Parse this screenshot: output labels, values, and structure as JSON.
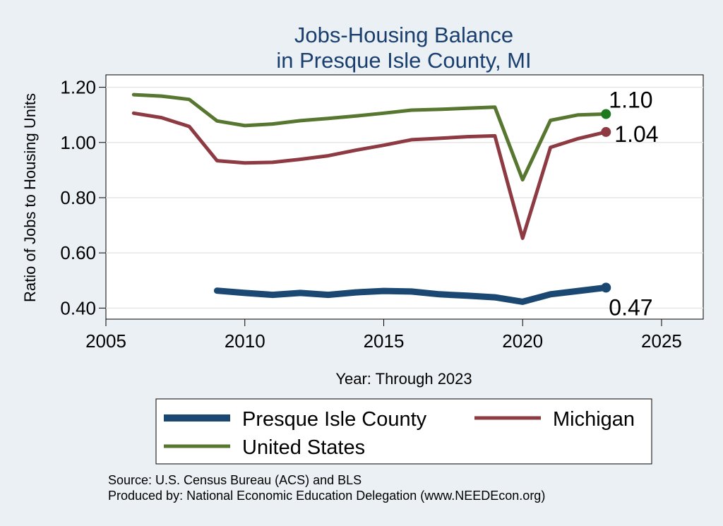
{
  "chart_data": {
    "type": "line",
    "title": [
      "Jobs-Housing Balance",
      "in Presque Isle County, MI"
    ],
    "xlabel": "Year: Through 2023",
    "ylabel": "Ratio of Jobs to Housing Units",
    "xlim": [
      2005,
      2026.5
    ],
    "ylim": [
      0.36,
      1.245
    ],
    "xticks": [
      2005,
      2010,
      2015,
      2020,
      2025
    ],
    "yticks": [
      0.4,
      0.6,
      0.8,
      1.0,
      1.2
    ],
    "ytick_labels": [
      "0.40",
      "0.60",
      "0.80",
      "1.00",
      "1.20"
    ],
    "grid": "horizontal",
    "legend_placement": "bottom",
    "series": [
      {
        "key": "county",
        "name": "Presque Isle County",
        "color": "#1b4872",
        "x": [
          2009,
          2010,
          2011,
          2012,
          2013,
          2014,
          2015,
          2016,
          2017,
          2018,
          2019,
          2020,
          2021,
          2022,
          2023
        ],
        "values": [
          0.463,
          0.455,
          0.448,
          0.455,
          0.448,
          0.457,
          0.462,
          0.46,
          0.45,
          0.445,
          0.439,
          0.423,
          0.45,
          0.462,
          0.474
        ],
        "end_label": "0.47"
      },
      {
        "key": "michigan",
        "name": "Michigan",
        "color": "#8e3a42",
        "x": [
          2006,
          2007,
          2008,
          2009,
          2010,
          2011,
          2012,
          2013,
          2014,
          2015,
          2016,
          2017,
          2018,
          2019,
          2020,
          2021,
          2022,
          2023
        ],
        "values": [
          1.106,
          1.09,
          1.058,
          0.934,
          0.926,
          0.928,
          0.939,
          0.952,
          0.972,
          0.99,
          1.01,
          1.015,
          1.021,
          1.024,
          0.653,
          0.982,
          1.014,
          1.038
        ],
        "end_label": "1.04"
      },
      {
        "key": "us",
        "name": "United States",
        "color": "#57762f",
        "x": [
          2006,
          2007,
          2008,
          2009,
          2010,
          2011,
          2012,
          2013,
          2014,
          2015,
          2016,
          2017,
          2018,
          2019,
          2020,
          2021,
          2022,
          2023
        ],
        "values": [
          1.173,
          1.168,
          1.156,
          1.078,
          1.061,
          1.067,
          1.079,
          1.087,
          1.096,
          1.106,
          1.117,
          1.12,
          1.124,
          1.128,
          0.865,
          1.08,
          1.1,
          1.103
        ],
        "end_label": "1.10"
      }
    ]
  },
  "endpoint_colors": {
    "county": "#1b4872",
    "michigan": "#8e3a42",
    "us": "#1f7a1f"
  },
  "source_lines": [
    "Source: U.S. Census Bureau (ACS) and BLS",
    "Produced by: National Economic Education Delegation (www.NEEDEcon.org)"
  ]
}
